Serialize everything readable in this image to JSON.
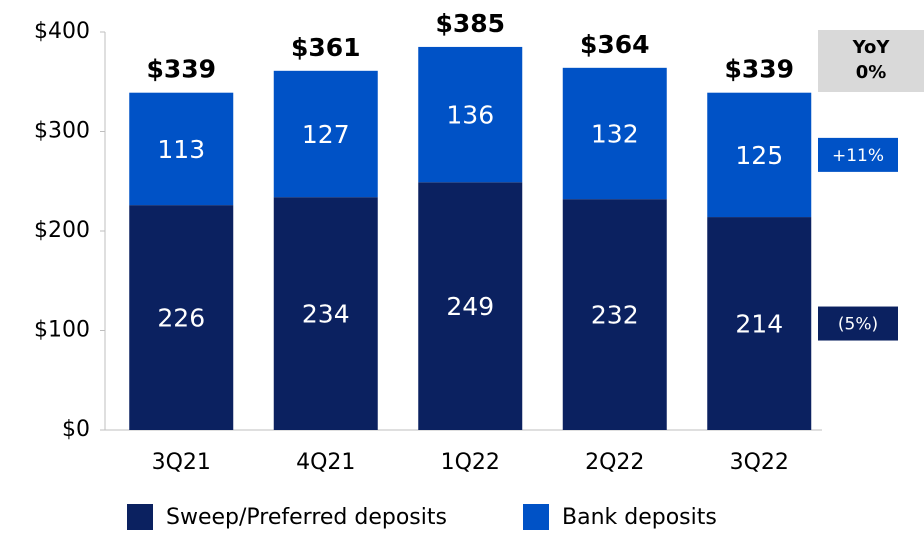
{
  "chart_data": {
    "type": "stacked_bar",
    "categories": [
      "3Q21",
      "4Q21",
      "1Q22",
      "2Q22",
      "3Q22"
    ],
    "series": [
      {
        "name": "Sweep/Preferred deposits",
        "color": "#0b2160",
        "values": [
          226,
          234,
          249,
          232,
          214
        ],
        "yoy_label": "(5%)"
      },
      {
        "name": "Bank deposits",
        "color": "#0052c6",
        "values": [
          113,
          127,
          136,
          132,
          125
        ],
        "yoy_label": "+11%"
      }
    ],
    "totals": [
      339,
      361,
      385,
      364,
      339
    ],
    "total_labels": [
      "$339",
      "$361",
      "$385",
      "$364",
      "$339"
    ],
    "yoy": {
      "title": "YoY",
      "total": "0%"
    },
    "ylim": [
      0,
      400
    ],
    "yticks": [
      {
        "value": 0,
        "label": "$0"
      },
      {
        "value": 100,
        "label": "$100"
      },
      {
        "value": 200,
        "label": "$200"
      },
      {
        "value": 300,
        "label": "$300"
      },
      {
        "value": 400,
        "label": "$400"
      }
    ],
    "legend": "bottom"
  }
}
